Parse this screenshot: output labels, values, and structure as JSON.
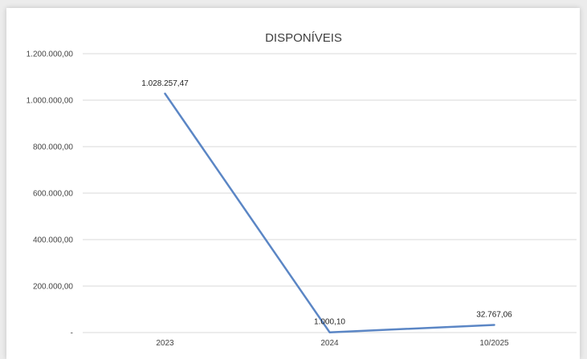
{
  "chart_data": {
    "type": "line",
    "title": "DISPONÍVEIS",
    "categories": [
      "2023",
      "2024",
      "10/2025"
    ],
    "series": [
      {
        "values": [
          1028257.47,
          1000.1,
          32767.06
        ],
        "data_labels": [
          "1.028.257,47",
          "1.000,10",
          "32.767,06"
        ]
      }
    ],
    "ylim": [
      0,
      1200000
    ],
    "yticks": [
      0,
      200000,
      400000,
      600000,
      800000,
      1000000,
      1200000
    ],
    "ytick_labels": [
      "-",
      "200.000,00",
      "400.000,00",
      "600.000,00",
      "800.000,00",
      "1.000.000,00",
      "1.200.000,00"
    ],
    "grid": true,
    "line_color": "#5b86c5"
  }
}
